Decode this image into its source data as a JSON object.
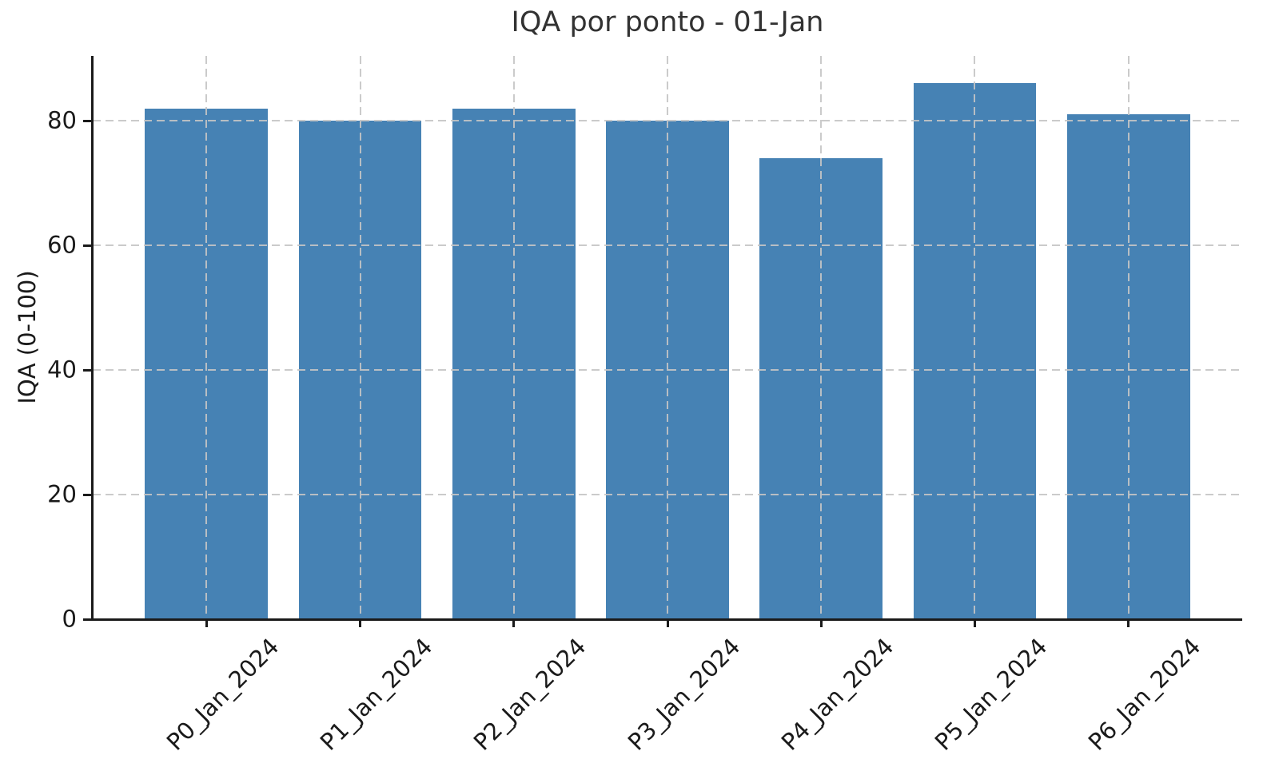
{
  "chart": {
    "title": "IQA por ponto - 01-Jan",
    "ylabel": "IQA (0-100)",
    "xlabel": ""
  },
  "chart_data": {
    "type": "bar",
    "title": "IQA por ponto - 01-Jan",
    "xlabel": "",
    "ylabel": "IQA (0-100)",
    "categories": [
      "P0_Jan_2024",
      "P1_Jan_2024",
      "P2_Jan_2024",
      "P3_Jan_2024",
      "P4_Jan_2024",
      "P5_Jan_2024",
      "P6_Jan_2024"
    ],
    "values": [
      82,
      80,
      82,
      80,
      74,
      86,
      81
    ],
    "yticks": [
      0,
      20,
      40,
      60,
      80
    ],
    "ylim": [
      0,
      90.4
    ],
    "grid": true,
    "grid_style": "dashed",
    "legend": "none",
    "bar_color": "#4682B4"
  }
}
